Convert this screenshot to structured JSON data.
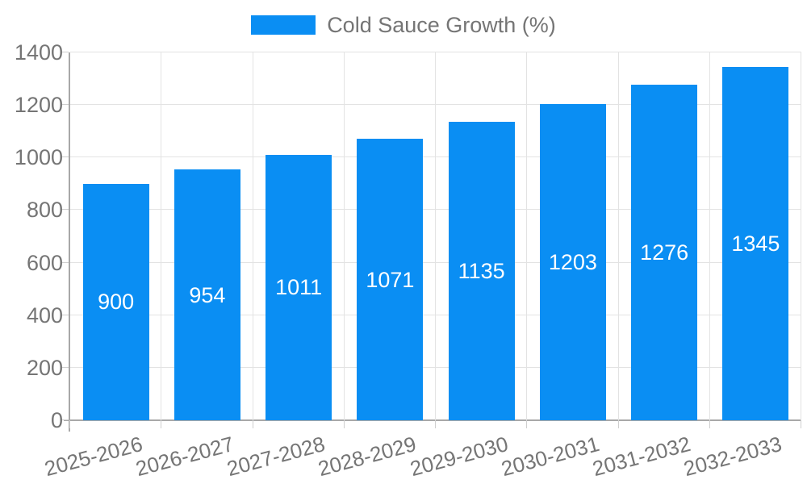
{
  "chart_data": {
    "type": "bar",
    "title": "",
    "legend": {
      "position": "top",
      "label": "Cold Sauce Growth (%)"
    },
    "categories": [
      "2025-2026",
      "2026-2027",
      "2027-2028",
      "2028-2029",
      "2029-2030",
      "2030-2031",
      "2031-2032",
      "2032-2033"
    ],
    "series": [
      {
        "name": "Cold Sauce Growth (%)",
        "values": [
          900,
          954,
          1011,
          1071,
          1135,
          1203,
          1276,
          1345
        ]
      }
    ],
    "value_labels_shown": true,
    "xlabel": "",
    "ylabel": "",
    "ylim": [
      0,
      1400
    ],
    "yticks": [
      0,
      200,
      400,
      600,
      800,
      1000,
      1200,
      1400
    ],
    "grid": true,
    "x_label_rotation_deg": -15,
    "colors": {
      "bar": "#0a8ef3",
      "value_label": "#ffffff",
      "axis_text": "#757575",
      "legend_text": "#757575",
      "gridline": "#e3e3e3",
      "axis_line": "#a8a8a8",
      "tick": "#cfcfcf",
      "background": "#ffffff"
    }
  }
}
